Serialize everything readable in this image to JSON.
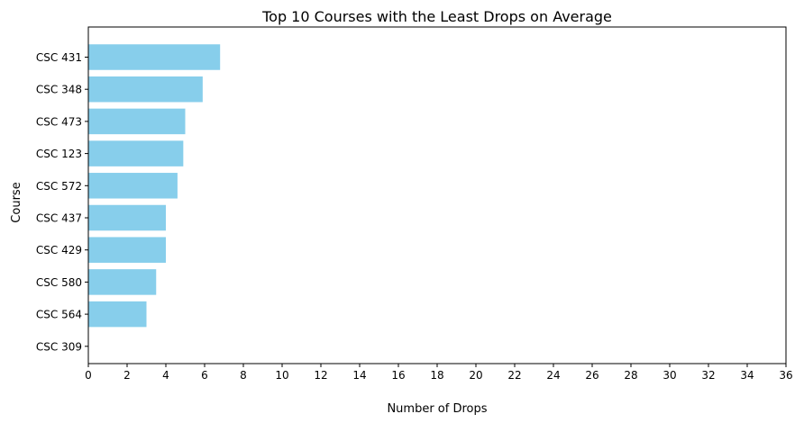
{
  "chart_data": {
    "type": "bar",
    "orientation": "horizontal",
    "title": "Top 10 Courses with the Least Drops on Average",
    "xlabel": "Number of Drops",
    "ylabel": "Course",
    "categories": [
      "CSC 431",
      "CSC 348",
      "CSC 473",
      "CSC 123",
      "CSC 572",
      "CSC 437",
      "CSC 429",
      "CSC 580",
      "CSC 564",
      "CSC 309"
    ],
    "values": [
      6.8,
      5.9,
      5.0,
      4.9,
      4.6,
      4.0,
      4.0,
      3.5,
      3.0,
      0
    ],
    "xlim": [
      0,
      36
    ],
    "xticks": [
      "0",
      "2",
      "4",
      "6",
      "8",
      "10",
      "12",
      "14",
      "16",
      "18",
      "20",
      "22",
      "24",
      "26",
      "28",
      "30",
      "32",
      "34",
      "36"
    ],
    "bar_color": "#87ceeb",
    "grid": false,
    "legend": "none"
  }
}
